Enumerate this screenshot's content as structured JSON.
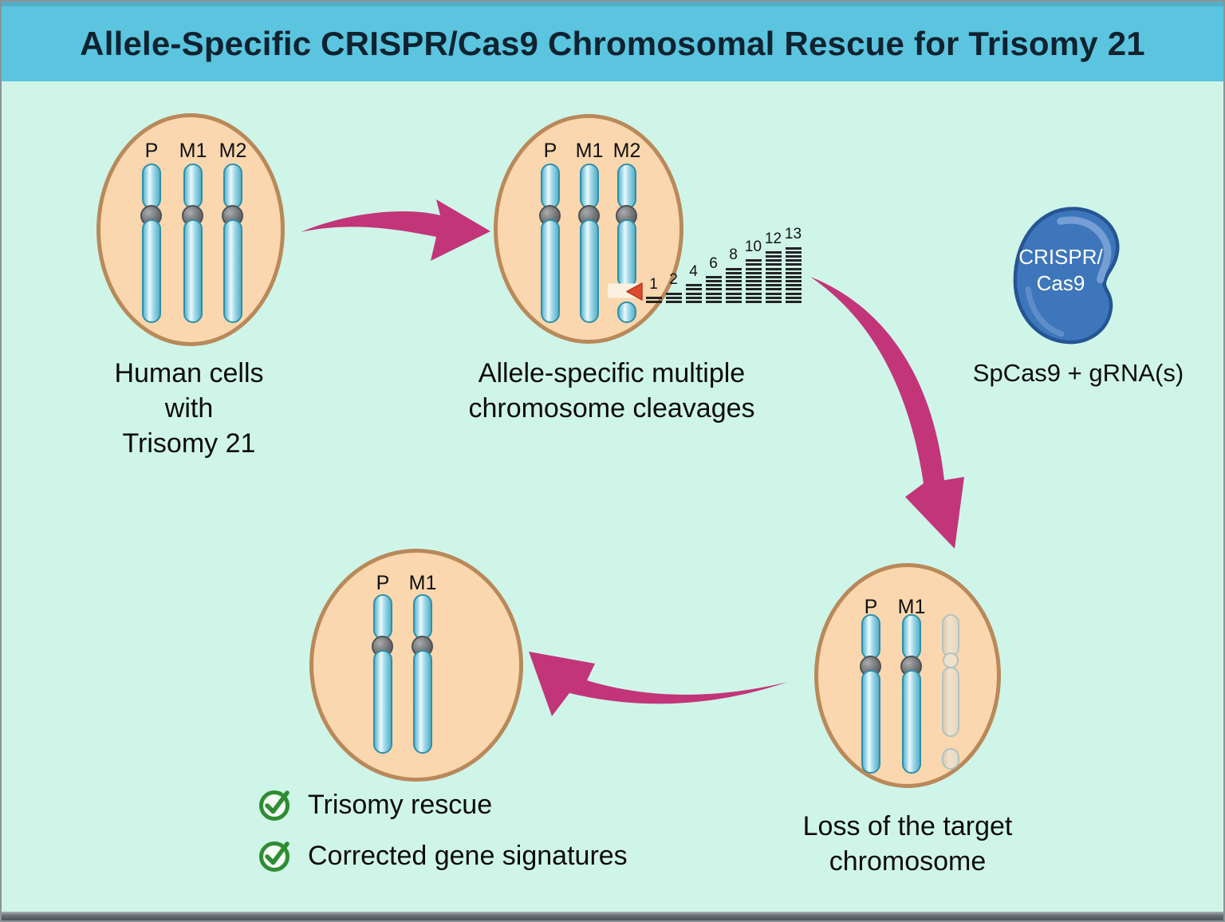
{
  "title": "Allele-Specific CRISPR/Cas9 Chromosomal Rescue for Trisomy 21",
  "colors": {
    "background": "#CFF5E9",
    "banner": "#5BC4DE",
    "title_text": "#0E2230",
    "cell_fill": "#FAD7AE",
    "cell_border": "#B9895A",
    "chromosome_fill": "#8FD2E4",
    "chromosome_border": "#2E90AA",
    "ghost_chromosome_fill": "#E7D9C5",
    "arrow_magenta": "#C23579",
    "cas9_blob_blue": "#3E76BB",
    "check_green": "#2F8C33",
    "cut_marker_red": "#DC4B2D"
  },
  "cells": {
    "trisomy": {
      "chromosomes": [
        "P",
        "M1",
        "M2"
      ],
      "caption_lines": [
        "Human cells",
        "with",
        "Trisomy 21"
      ]
    },
    "cleaved": {
      "chromosomes": [
        "P",
        "M1",
        "M2"
      ],
      "caption_lines": [
        "Allele-specific multiple",
        "chromosome cleavages"
      ]
    },
    "loss": {
      "chromosomes": [
        "P",
        "M1"
      ],
      "caption_lines": [
        "Loss of the target",
        "chromosome"
      ]
    },
    "rescued": {
      "chromosomes": [
        "P",
        "M1"
      ]
    }
  },
  "ladder": {
    "labels": [
      1,
      2,
      4,
      6,
      8,
      10,
      12,
      13
    ]
  },
  "crispr": {
    "blob_label_lines": [
      "CRISPR/",
      "Cas9"
    ],
    "caption": "SpCas9 + gRNA(s)"
  },
  "outcomes": [
    {
      "label": "Trisomy rescue"
    },
    {
      "label": "Corrected gene signatures"
    }
  ]
}
